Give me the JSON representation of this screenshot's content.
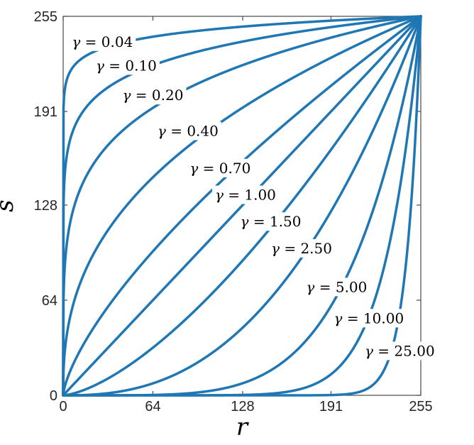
{
  "figure": {
    "background": "#ffffff",
    "axis_color": "#4a4a4a",
    "tick_label_color": "#262626"
  },
  "chart_data": {
    "type": "line",
    "title": "",
    "xlabel": "r",
    "ylabel": "s",
    "xlim": [
      0,
      255
    ],
    "ylim": [
      0,
      255
    ],
    "xticks": [
      0,
      64,
      128,
      191,
      255
    ],
    "yticks": [
      0,
      64,
      128,
      191,
      255
    ],
    "grid": false,
    "legend_position": "inline-curve-labels",
    "line_color": "#1f77b4",
    "line_width": 3.5,
    "curve_function": "s = 255 * (r/255)^gamma",
    "x_samples": [
      0,
      32,
      64,
      96,
      128,
      160,
      192,
      224,
      255
    ],
    "series": [
      {
        "name": "gamma = 0.04",
        "gamma": 0.04,
        "label": "γ = 0.04",
        "label_pos": {
          "r": 28,
          "s": 238
        },
        "values": [
          0,
          234.7,
          241.3,
          245.2,
          248.1,
          250.3,
          252.1,
          253.7,
          255
        ]
      },
      {
        "name": "gamma = 0.10",
        "gamma": 0.1,
        "label": "γ = 0.10",
        "label_pos": {
          "r": 45,
          "s": 222
        },
        "values": [
          0,
          207.2,
          222.1,
          231.3,
          238.0,
          243.4,
          247.9,
          251.7,
          255
        ]
      },
      {
        "name": "gamma = 0.20",
        "gamma": 0.2,
        "label": "γ = 0.20",
        "label_pos": {
          "r": 64,
          "s": 202
        },
        "values": [
          0,
          168.4,
          193.4,
          209.7,
          222.2,
          232.3,
          240.9,
          248.5,
          255
        ]
      },
      {
        "name": "gamma = 0.40",
        "gamma": 0.4,
        "label": "γ = 0.40",
        "label_pos": {
          "r": 89,
          "s": 178
        },
        "values": [
          0,
          111.2,
          146.7,
          172.5,
          193.5,
          211.6,
          227.6,
          242.1,
          255
        ]
      },
      {
        "name": "gamma = 0.70",
        "gamma": 0.7,
        "label": "γ = 0.70",
        "label_pos": {
          "r": 112,
          "s": 153
        },
        "values": [
          0,
          59.6,
          96.9,
          128.7,
          157.4,
          184.0,
          209.0,
          232.9,
          255
        ]
      },
      {
        "name": "gamma = 1.00",
        "gamma": 1.0,
        "label": "γ = 1.00",
        "label_pos": {
          "r": 130,
          "s": 135
        },
        "values": [
          0,
          32,
          64,
          96,
          128,
          160,
          192,
          224,
          255
        ]
      },
      {
        "name": "gamma = 1.50",
        "gamma": 1.5,
        "label": "γ = 1.50",
        "label_pos": {
          "r": 148,
          "s": 117
        },
        "values": [
          0,
          11.3,
          32.1,
          58.9,
          90.7,
          126.7,
          166.6,
          209.9,
          255
        ]
      },
      {
        "name": "gamma = 2.50",
        "gamma": 2.5,
        "label": "γ = 2.50",
        "label_pos": {
          "r": 170,
          "s": 99
        },
        "values": [
          0,
          1.4,
          8.0,
          22.2,
          45.5,
          79.5,
          125.4,
          184.4,
          255
        ]
      },
      {
        "name": "gamma = 5.00",
        "gamma": 5.0,
        "label": "γ = 5.00",
        "label_pos": {
          "r": 195,
          "s": 73
        },
        "values": [
          0,
          0.0,
          0.3,
          1.9,
          8.1,
          24.8,
          61.7,
          133.4,
          255
        ]
      },
      {
        "name": "gamma = 10.00",
        "gamma": 10.0,
        "label": "γ = 10.00",
        "label_pos": {
          "r": 218,
          "s": 52
        },
        "values": [
          0,
          0.0,
          0.0,
          0.0,
          0.3,
          2.4,
          14.9,
          69.8,
          255
        ]
      },
      {
        "name": "gamma = 25.00",
        "gamma": 25.0,
        "label": "γ = 25.00",
        "label_pos": {
          "r": 240,
          "s": 30
        },
        "values": [
          0,
          0.0,
          0.0,
          0.0,
          0.0,
          0.0,
          0.2,
          10.0,
          255
        ]
      }
    ]
  }
}
